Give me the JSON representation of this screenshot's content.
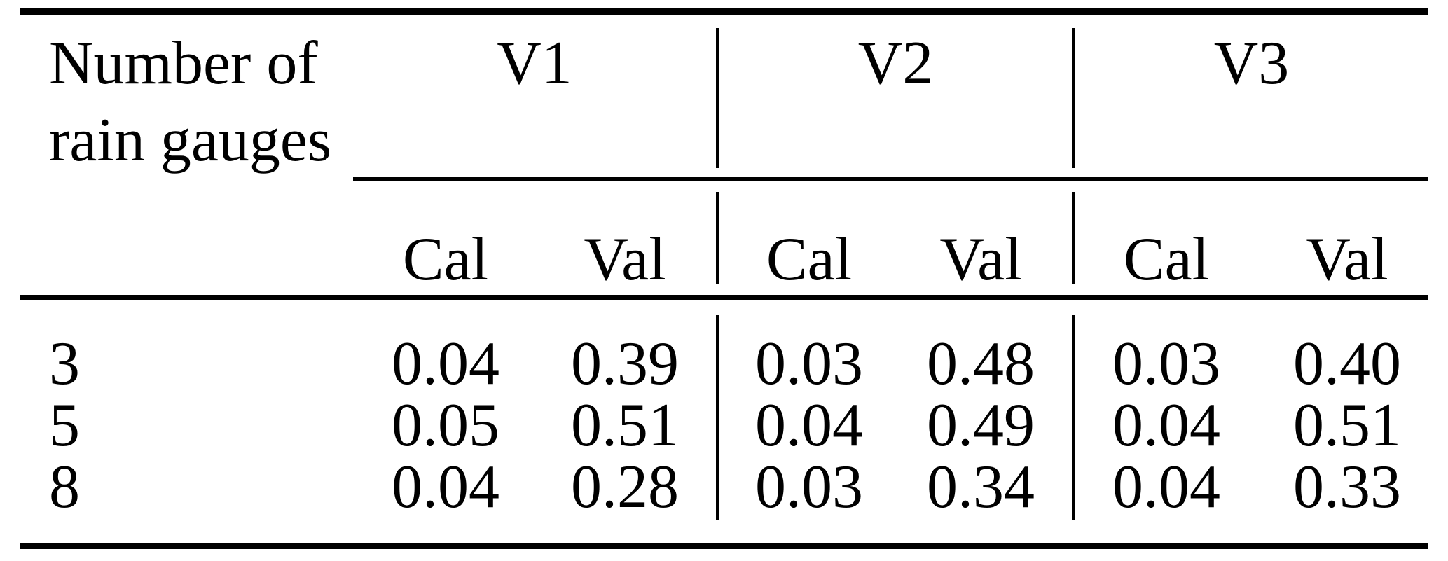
{
  "table": {
    "row_header": {
      "line1": "Number of",
      "line2": "rain gauges"
    },
    "groups": [
      {
        "label": "V1"
      },
      {
        "label": "V2"
      },
      {
        "label": "V3"
      }
    ],
    "subheaders": [
      "Cal",
      "Val",
      "Cal",
      "Val",
      "Cal",
      "Val"
    ],
    "rows": [
      {
        "label": "3",
        "values": [
          "0.04",
          "0.39",
          "0.03",
          "0.48",
          "0.03",
          "0.40"
        ]
      },
      {
        "label": "5",
        "values": [
          "0.05",
          "0.51",
          "0.04",
          "0.49",
          "0.04",
          "0.51"
        ]
      },
      {
        "label": "8",
        "values": [
          "0.04",
          "0.28",
          "0.03",
          "0.34",
          "0.04",
          "0.33"
        ]
      }
    ],
    "colors": {
      "background": "#ffffff",
      "text": "#000000",
      "rule": "#000000"
    }
  },
  "chart_data": {
    "type": "table",
    "title": "",
    "columns": [
      "Number of rain gauges",
      "V1 Cal",
      "V1 Val",
      "V2 Cal",
      "V2 Val",
      "V3 Cal",
      "V3 Val"
    ],
    "rows": [
      [
        3,
        0.04,
        0.39,
        0.03,
        0.48,
        0.03,
        0.4
      ],
      [
        5,
        0.05,
        0.51,
        0.04,
        0.49,
        0.04,
        0.51
      ],
      [
        8,
        0.04,
        0.28,
        0.03,
        0.34,
        0.04,
        0.33
      ]
    ]
  }
}
